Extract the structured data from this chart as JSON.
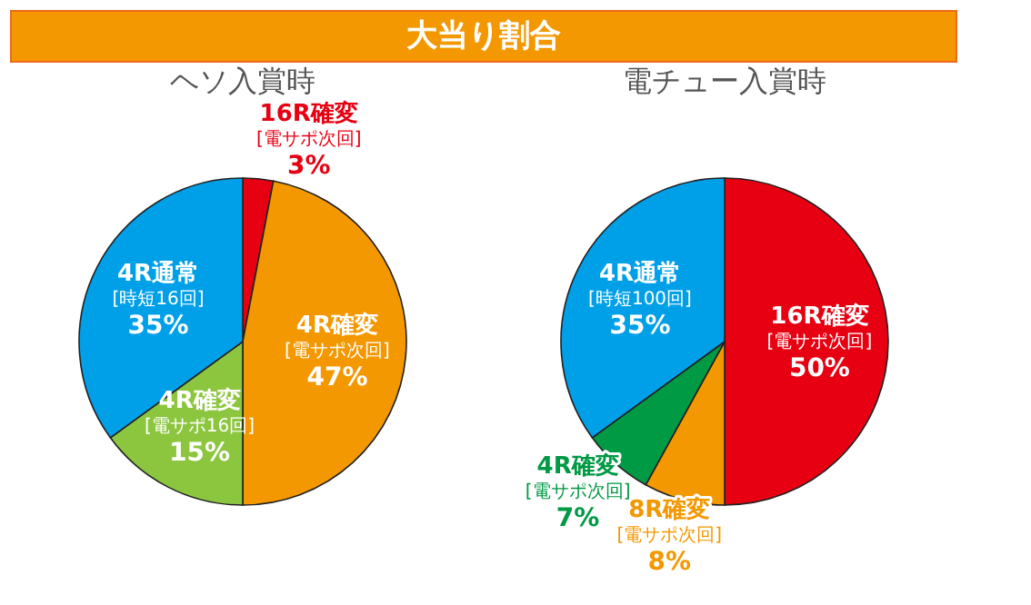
{
  "chart_data": [
    {
      "type": "other",
      "title": "大当り割合"
    },
    {
      "type": "pie",
      "title": "ヘソ入賞時",
      "categories": [
        "16R確変\n[電サポ次回]",
        "4R確変\n[電サポ次回]",
        "4R確変\n[電サポ16回]",
        "4R通常\n[時短16回]"
      ],
      "values": [
        3,
        47,
        15,
        35
      ],
      "colors": [
        "#e60012",
        "#f39800",
        "#8cc63f",
        "#00a0e9"
      ],
      "value_labels": [
        "3%",
        "47%",
        "15%",
        "35%"
      ]
    },
    {
      "type": "pie",
      "title": "電チュー入賞時",
      "categories": [
        "16R確変\n[電サポ次回]",
        "8R確変\n[電サポ次回]",
        "4R確変\n[電サポ次回]",
        "4R通常\n[時短100回]"
      ],
      "values": [
        50,
        8,
        7,
        35
      ],
      "colors": [
        "#e60012",
        "#f39800",
        "#009944",
        "#00a0e9"
      ],
      "value_labels": [
        "50%",
        "8%",
        "7%",
        "35%"
      ]
    }
  ]
}
